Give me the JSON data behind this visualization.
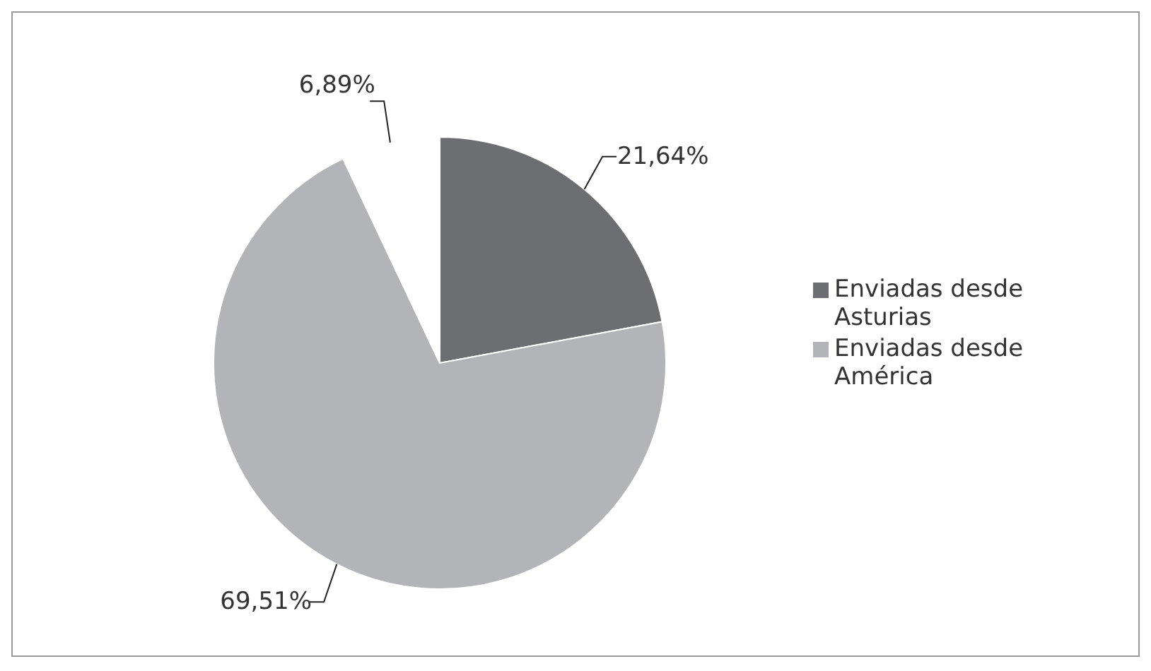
{
  "chart_data": {
    "type": "pie",
    "categories": [
      "Enviadas desde Asturias",
      "Enviadas desde América",
      null
    ],
    "values": [
      21.64,
      69.51,
      6.89
    ],
    "colors": [
      "#6d6e71",
      "#b3b4b8",
      "#ffffff"
    ],
    "value_labels": [
      "21,64%",
      "69,51%",
      "6,89%"
    ],
    "legend": "right"
  }
}
